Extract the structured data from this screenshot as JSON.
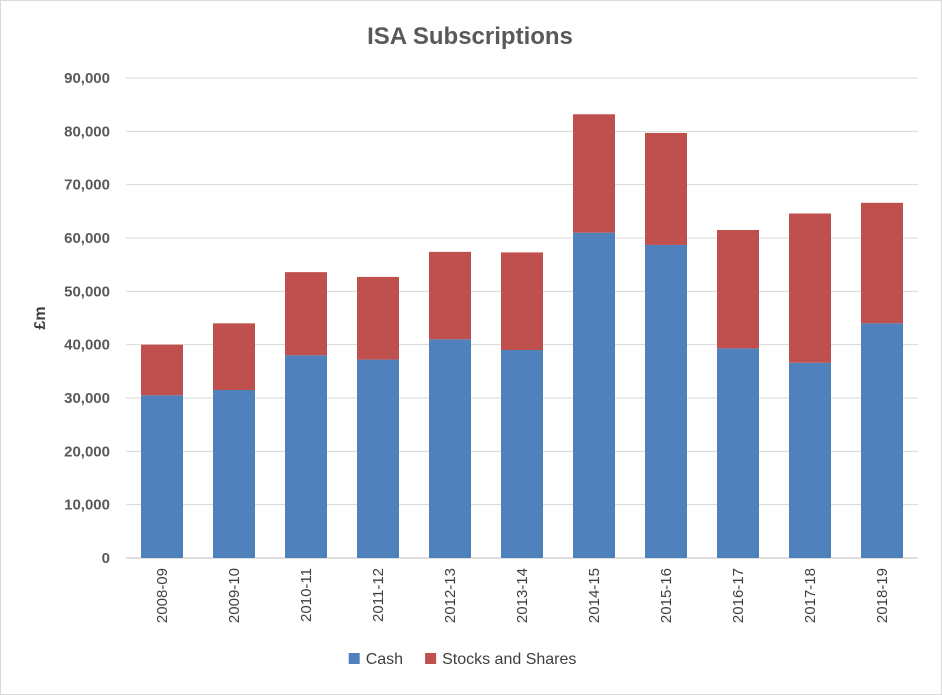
{
  "chart_data": {
    "type": "bar",
    "stacked": true,
    "title": "ISA Subscriptions",
    "xlabel": "",
    "ylabel": "£m",
    "ylim": [
      0,
      90000
    ],
    "ytick_step": 10000,
    "ytick_labels": [
      "0",
      "10,000",
      "20,000",
      "30,000",
      "40,000",
      "50,000",
      "60,000",
      "70,000",
      "80,000",
      "90,000"
    ],
    "grid": true,
    "legend_position": "bottom",
    "categories": [
      "2008-09",
      "2009-10",
      "2010-11",
      "2011-12",
      "2012-13",
      "2013-14",
      "2014-15",
      "2015-16",
      "2016-17",
      "2017-18",
      "2018-19"
    ],
    "series": [
      {
        "name": "Cash",
        "color": "#4f81bd",
        "values": [
          30500,
          31500,
          38000,
          37200,
          41000,
          39000,
          61000,
          58700,
          39300,
          36600,
          44000
        ]
      },
      {
        "name": "Stocks and Shares",
        "color": "#c0504d",
        "values": [
          9500,
          12500,
          15600,
          15500,
          16400,
          18300,
          22200,
          21000,
          22200,
          28000,
          22600
        ]
      }
    ],
    "colors": {
      "gridline": "#d9d9d9",
      "axis": "#bfbfbf",
      "frame": "#d9d9d9"
    }
  }
}
